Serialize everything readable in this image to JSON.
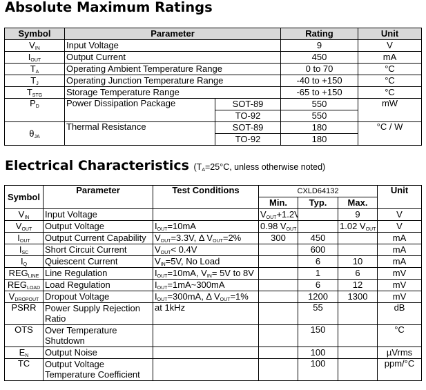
{
  "amr": {
    "title": "Absolute Maximum Ratings",
    "headers": {
      "symbol": "Symbol",
      "parameter": "Parameter",
      "rating": "Rating",
      "unit": "Unit"
    },
    "rows": [
      {
        "sym": "V",
        "sub": "IN",
        "param": "Input Voltage",
        "rating": "9",
        "unit": "V"
      },
      {
        "sym": "I",
        "sub": "OUT",
        "param": "Output Current",
        "rating": "450",
        "unit": "mA"
      },
      {
        "sym": "T",
        "sub": "A",
        "param": "Operating Ambient Temperature Range",
        "rating": "0 to 70",
        "unit": "°C"
      },
      {
        "sym": "T",
        "sub": "J",
        "param": "Operating Junction Temperature Range",
        "rating": "-40 to +150",
        "unit": "°C"
      },
      {
        "sym": "T",
        "sub": "STG",
        "param": "Storage Temperature Range",
        "rating": "-65 to +150",
        "unit": "°C"
      }
    ],
    "pd": {
      "sym": "P",
      "sub": "D",
      "param": "Power Dissipation Package",
      "pkg1": "SOT-89",
      "val1": "550",
      "pkg2": "TO-92",
      "val2": "550",
      "unit": "mW"
    },
    "theta": {
      "sym": "θ",
      "sub": "JA",
      "param": "Thermal Resistance",
      "pkg1": "SOT-89",
      "val1": "180",
      "pkg2": "TO-92",
      "val2": "180",
      "unit": "°C / W"
    }
  },
  "ec": {
    "title": "Electrical Characteristics",
    "note_prefix": "(T",
    "note_sub": "A",
    "note_suffix": "=25°C, unless otherwise noted)",
    "headers": {
      "symbol": "Symbol",
      "parameter": "Parameter",
      "test": "Test Conditions",
      "part": "CXLD64132",
      "min": "Min.",
      "typ": "Typ.",
      "max": "Max.",
      "unit": "Unit"
    },
    "rows": [
      {
        "sym": "V",
        "sub": "IN",
        "param": "Input Voltage",
        "test": "",
        "min": "V",
        "min_sub": "OUT",
        "min_suf": "+1.2V",
        "typ": "",
        "max": "9",
        "unit": "V"
      },
      {
        "sym": "V",
        "sub": "OUT",
        "param": "Output Voltage",
        "t1": "I",
        "t1s": "OUT",
        "t1r": "=10mA",
        "min": "0.98 V",
        "min_sub": "OUT",
        "typ": "",
        "max": "1.02 V",
        "max_sub": "OUT",
        "unit": "V"
      },
      {
        "sym": "I",
        "sub": "OUT",
        "param": "Output Current Capability",
        "t1": "V",
        "t1s": "OUT",
        "t1r": "=3.3V, Δ V",
        "t2s": "OUT",
        "t2r": "=2%",
        "min": "300",
        "typ": "450",
        "max": "",
        "unit": "mA"
      },
      {
        "sym": "I",
        "sub": "SC",
        "param": "Short Circuit Current",
        "t1": "V",
        "t1s": "OUT",
        "t1r": "< 0.4V",
        "min": "",
        "typ": "600",
        "max": "",
        "unit": "mA"
      },
      {
        "sym": "I",
        "sub": "Q",
        "param": "Quiescent Current",
        "t1": "V",
        "t1s": "IN",
        "t1r": "=5V, No Load",
        "min": "",
        "typ": "6",
        "max": "10",
        "unit": "mA"
      },
      {
        "sym": "REG",
        "sub": "LINE",
        "param": "Line Regulation",
        "t1": "I",
        "t1s": "OUT",
        "t1r": "=10mA, V",
        "t2s": "IN",
        "t2r": "= 5V to 8V",
        "min": "",
        "typ": "1",
        "max": "6",
        "unit": "mV"
      },
      {
        "sym": "REG",
        "sub": "LOAD",
        "param": "Load Regulation",
        "t1": "I",
        "t1s": "OUT",
        "t1r": "=1mA~300mA",
        "min": "",
        "typ": "6",
        "max": "12",
        "unit": "mV"
      },
      {
        "sym": "V",
        "sub": "DROPOUT",
        "param": "Dropout Voltage",
        "t1": "I",
        "t1s": "OUT",
        "t1r": "=300mA, Δ V",
        "t2s": "OUT",
        "t2r": "=1%",
        "min": "",
        "typ": "1200",
        "max": "1300",
        "unit": "mV"
      },
      {
        "sym": "PSRR",
        "param": "Power Supply Rejection Ratio",
        "test": "at 1kHz",
        "min": "",
        "typ": "55",
        "max": "",
        "unit": "dB"
      },
      {
        "sym": "OTS",
        "param": "Over Temperature Shutdown",
        "test": "",
        "min": "",
        "typ": "150",
        "max": "",
        "unit": "°C"
      },
      {
        "sym": "E",
        "sub": "N",
        "param": "Output Noise",
        "test": "",
        "min": "",
        "typ": "100",
        "max": "",
        "unit": "µVrms"
      },
      {
        "sym": "TC",
        "param": "Output Voltage Temperature Coefficient",
        "test": "",
        "min": "",
        "typ": "100",
        "max": "",
        "unit": "ppm/°C"
      }
    ]
  }
}
